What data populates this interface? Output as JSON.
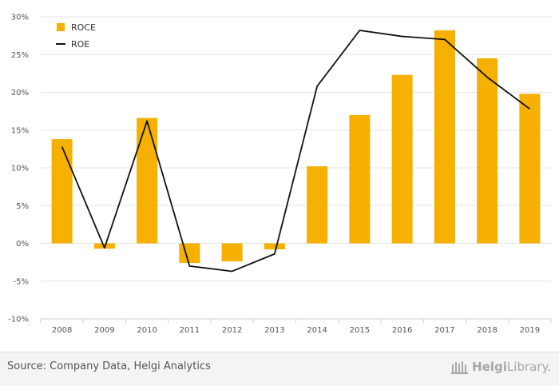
{
  "chart_data": {
    "type": "bar",
    "categories": [
      "2008",
      "2009",
      "2010",
      "2011",
      "2012",
      "2013",
      "2014",
      "2015",
      "2016",
      "2017",
      "2018",
      "2019"
    ],
    "series": [
      {
        "name": "ROCE",
        "type": "bar",
        "color": "#f5b000",
        "values": [
          13.8,
          -0.7,
          16.6,
          -2.6,
          -2.4,
          -0.8,
          10.2,
          17.0,
          22.3,
          28.2,
          24.5,
          19.8
        ]
      },
      {
        "name": "ROE",
        "type": "line",
        "color": "#111111",
        "values": [
          12.8,
          -0.6,
          16.2,
          -3.0,
          -3.7,
          -1.4,
          20.8,
          28.2,
          27.4,
          27.0,
          22.0,
          17.8
        ]
      }
    ],
    "yticks": [
      "-10%",
      "-5%",
      "0%",
      "5%",
      "10%",
      "15%",
      "20%",
      "25%",
      "30%"
    ],
    "ylim": [
      -10,
      30
    ],
    "legend_position": "top-left",
    "grid": true
  },
  "footer": {
    "source": "Source: Company Data, Helgi Analytics",
    "brand_bold": "Helgi",
    "brand_rest": "Library."
  }
}
